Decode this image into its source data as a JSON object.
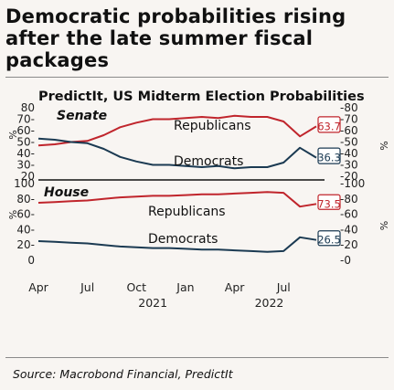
{
  "title": "Democratic probabilities rising after the late summer fiscal packages",
  "subtitle": "PredictIt, US Midterm Election Probabilities",
  "source": "Source: Macrobond Financial, PredictIt",
  "colors": {
    "republicans": "#c0252c",
    "democrats": "#1b3a52",
    "background": "#f8f5f2"
  },
  "chart_data": [
    {
      "type": "line",
      "panel": "Senate",
      "title": "Senate",
      "ylabel": "%",
      "ylim": [
        20,
        80
      ],
      "yticks": [
        20,
        30,
        40,
        50,
        60,
        70,
        80
      ],
      "right_yticks": [
        20,
        30,
        40,
        50,
        60,
        70,
        80
      ],
      "x": [
        "2021-04",
        "2021-05",
        "2021-06",
        "2021-07",
        "2021-08",
        "2021-09",
        "2021-10",
        "2021-11",
        "2021-12",
        "2022-01",
        "2022-02",
        "2022-03",
        "2022-04",
        "2022-05",
        "2022-06",
        "2022-07",
        "2022-08",
        "2022-09"
      ],
      "series": [
        {
          "name": "Republicans",
          "values": [
            47,
            48,
            50,
            51,
            56,
            63,
            67,
            70,
            70,
            71,
            72,
            71,
            73,
            72,
            72,
            68,
            55,
            63.7
          ]
        },
        {
          "name": "Democrats",
          "values": [
            53,
            52,
            50,
            49,
            44,
            37,
            33,
            30,
            30,
            29,
            28,
            29,
            27,
            28,
            28,
            32,
            45,
            36.3
          ]
        }
      ],
      "end_labels": [
        "63.7",
        "36.3"
      ]
    },
    {
      "type": "line",
      "panel": "House",
      "title": "House",
      "ylabel": "%",
      "ylim": [
        0,
        100
      ],
      "yticks": [
        0,
        20,
        40,
        60,
        80,
        100
      ],
      "right_yticks": [
        0,
        20,
        40,
        60,
        80,
        100
      ],
      "x": [
        "2021-04",
        "2021-05",
        "2021-06",
        "2021-07",
        "2021-08",
        "2021-09",
        "2021-10",
        "2021-11",
        "2021-12",
        "2022-01",
        "2022-02",
        "2022-03",
        "2022-04",
        "2022-05",
        "2022-06",
        "2022-07",
        "2022-08",
        "2022-09"
      ],
      "series": [
        {
          "name": "Republicans",
          "values": [
            75,
            76,
            77,
            78,
            80,
            82,
            83,
            84,
            84,
            85,
            86,
            86,
            87,
            88,
            89,
            88,
            70,
            73.5
          ]
        },
        {
          "name": "Democrats",
          "values": [
            25,
            24,
            23,
            22,
            20,
            18,
            17,
            16,
            16,
            15,
            14,
            14,
            13,
            12,
            11,
            12,
            30,
            26.5
          ]
        }
      ],
      "end_labels": [
        "73.5",
        "26.5"
      ]
    }
  ],
  "x_ticks": [
    "Apr",
    "Jul",
    "Oct",
    "Jan",
    "Apr",
    "Jul"
  ],
  "x_years": [
    "2021",
    "2022"
  ]
}
